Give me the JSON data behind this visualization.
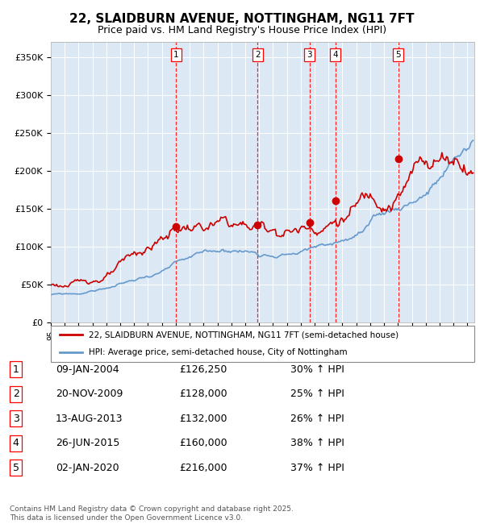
{
  "title": "22, SLAIDBURN AVENUE, NOTTINGHAM, NG11 7FT",
  "subtitle": "Price paid vs. HM Land Registry's House Price Index (HPI)",
  "legend_property": "22, SLAIDBURN AVENUE, NOTTINGHAM, NG11 7FT (semi-detached house)",
  "legend_hpi": "HPI: Average price, semi-detached house, City of Nottingham",
  "footer": "Contains HM Land Registry data © Crown copyright and database right 2025.\nThis data is licensed under the Open Government Licence v3.0.",
  "ylim": [
    0,
    370000
  ],
  "yticks": [
    0,
    50000,
    100000,
    150000,
    200000,
    250000,
    300000,
    350000
  ],
  "ytick_labels": [
    "£0",
    "£50K",
    "£100K",
    "£150K",
    "£200K",
    "£250K",
    "£300K",
    "£350K"
  ],
  "property_color": "#cc0000",
  "hpi_color": "#6699cc",
  "background_color": "#dce9f5",
  "sale_dates_num": [
    2004.03,
    2009.89,
    2013.62,
    2015.49,
    2020.01
  ],
  "sale_prices": [
    126250,
    128000,
    132000,
    160000,
    216000
  ],
  "sale_labels": [
    "1",
    "2",
    "3",
    "4",
    "5"
  ],
  "sale_info": [
    [
      "1",
      "09-JAN-2004",
      "£126,250",
      "30% ↑ HPI"
    ],
    [
      "2",
      "20-NOV-2009",
      "£128,000",
      "25% ↑ HPI"
    ],
    [
      "3",
      "13-AUG-2013",
      "£132,000",
      "26% ↑ HPI"
    ],
    [
      "4",
      "26-JUN-2015",
      "£160,000",
      "38% ↑ HPI"
    ],
    [
      "5",
      "02-JAN-2020",
      "£216,000",
      "37% ↑ HPI"
    ]
  ],
  "x_start_year": 1995,
  "x_end_year": 2025
}
